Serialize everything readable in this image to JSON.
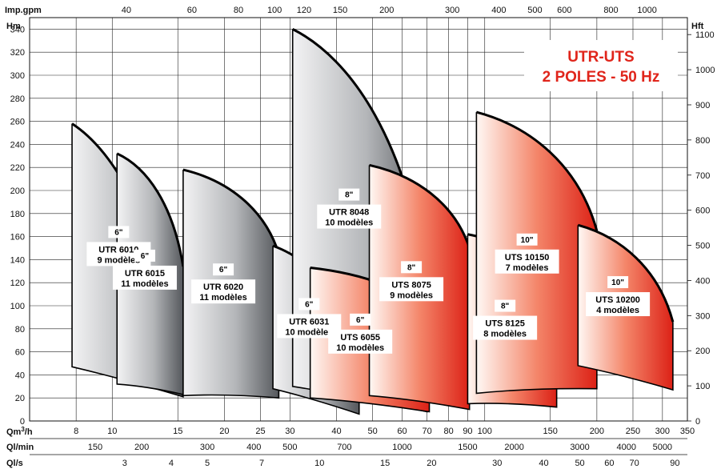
{
  "chart_data": {
    "type": "area",
    "title": "UTR-UTS",
    "subtitle": "2 POLES - 50 Hz",
    "y_left": {
      "label": "Hm",
      "ticks": [
        0,
        20,
        40,
        60,
        80,
        100,
        120,
        140,
        160,
        180,
        200,
        220,
        240,
        260,
        280,
        300,
        320,
        340
      ],
      "ylim": [
        0,
        350
      ]
    },
    "y_right": {
      "label": "Hft",
      "ticks": [
        0,
        100,
        200,
        300,
        400,
        500,
        600,
        700,
        800,
        900,
        1000,
        1100
      ]
    },
    "x_qm3h": {
      "label": "Qm3/h",
      "ticks": [
        8,
        10,
        15,
        20,
        25,
        30,
        40,
        50,
        60,
        70,
        80,
        90,
        100,
        150,
        200,
        250,
        300,
        350
      ],
      "xlim": [
        6,
        350
      ],
      "scale": "log"
    },
    "x_top_impgpm": {
      "label": "Imp.gpm",
      "ticks": [
        40,
        60,
        80,
        100,
        120,
        150,
        200,
        300,
        400,
        500,
        600,
        800,
        1000
      ]
    },
    "x_ql_min": {
      "label": "Ql/min",
      "ticks": [
        150,
        200,
        300,
        400,
        500,
        700,
        1000,
        1500,
        2000,
        3000,
        4000,
        5000
      ]
    },
    "x_ql_s": {
      "label": "Ql/s",
      "ticks": [
        3,
        4,
        5,
        7,
        10,
        15,
        20,
        30,
        40,
        50,
        60,
        70,
        90
      ]
    },
    "grid": true,
    "series": [
      {
        "name": "UTR 6010",
        "size": "6\"",
        "models": "9 modèles",
        "family": "UTR",
        "q_min": 7.8,
        "q_max": 15.5,
        "h_top_left": 258,
        "h_top_right": 22,
        "h_bottom_left": 47,
        "h_bottom_right": 21
      },
      {
        "name": "UTR 6015",
        "size": "6\"",
        "models": "11 modèles",
        "family": "UTR",
        "q_min": 10.3,
        "q_max": 15.5,
        "h_top_left": 232,
        "h_top_right": 134,
        "h_bottom_left": 32,
        "h_bottom_right": 23
      },
      {
        "name": "UTR 6020",
        "size": "6\"",
        "models": "11 modèles",
        "family": "UTR",
        "q_min": 15.5,
        "q_max": 28,
        "h_top_left": 218,
        "h_top_right": 145,
        "h_bottom_left": 22,
        "h_bottom_right": 20
      },
      {
        "name": "UTR 6031",
        "size": "6\"",
        "models": "10 modèles",
        "family": "UTR",
        "q_min": 27,
        "q_max": 46,
        "h_top_left": 152,
        "h_top_right": 52,
        "h_bottom_left": 28,
        "h_bottom_right": 6
      },
      {
        "name": "UTR 8048",
        "size": "8\"",
        "models": "10 modèles",
        "family": "UTR",
        "q_min": 30.5,
        "q_max": 70,
        "h_top_left": 340,
        "h_top_right": 120,
        "h_bottom_left": 30,
        "h_bottom_right": 8
      },
      {
        "name": "UTS 6055",
        "size": "6\"",
        "models": "10 modèles",
        "family": "UTS",
        "q_min": 34,
        "q_max": 71,
        "h_top_left": 133,
        "h_top_right": 90,
        "h_bottom_left": 20,
        "h_bottom_right": 8
      },
      {
        "name": "UTS 8075",
        "size": "8\"",
        "models": "9 modèles",
        "family": "UTS",
        "q_min": 49,
        "q_max": 91,
        "h_top_left": 222,
        "h_top_right": 150,
        "h_bottom_left": 22,
        "h_bottom_right": 10
      },
      {
        "name": "UTS 8125",
        "size": "8\"",
        "models": "8 modèles",
        "family": "UTS",
        "q_min": 90,
        "q_max": 156,
        "h_top_left": 162,
        "h_top_right": 108,
        "h_bottom_left": 15,
        "h_bottom_right": 12
      },
      {
        "name": "UTS 10150",
        "size": "10\"",
        "models": "7 modèles",
        "family": "UTS",
        "q_min": 95,
        "q_max": 200,
        "h_top_left": 268,
        "h_top_right": 165,
        "h_bottom_left": 24,
        "h_bottom_right": 28
      },
      {
        "name": "UTS 10200",
        "size": "10\"",
        "models": "4 modèles",
        "family": "UTS",
        "q_min": 178,
        "q_max": 320,
        "h_top_left": 170,
        "h_top_right": 86,
        "h_bottom_left": 48,
        "h_bottom_right": 27
      }
    ]
  },
  "colors": {
    "utr_dark": "#5c5f63",
    "utr_light": "#f2f2f3",
    "uts_dark": "#e3281c",
    "uts_light": "#fff7f3",
    "title": "#e0251b",
    "grid": "#111111"
  }
}
